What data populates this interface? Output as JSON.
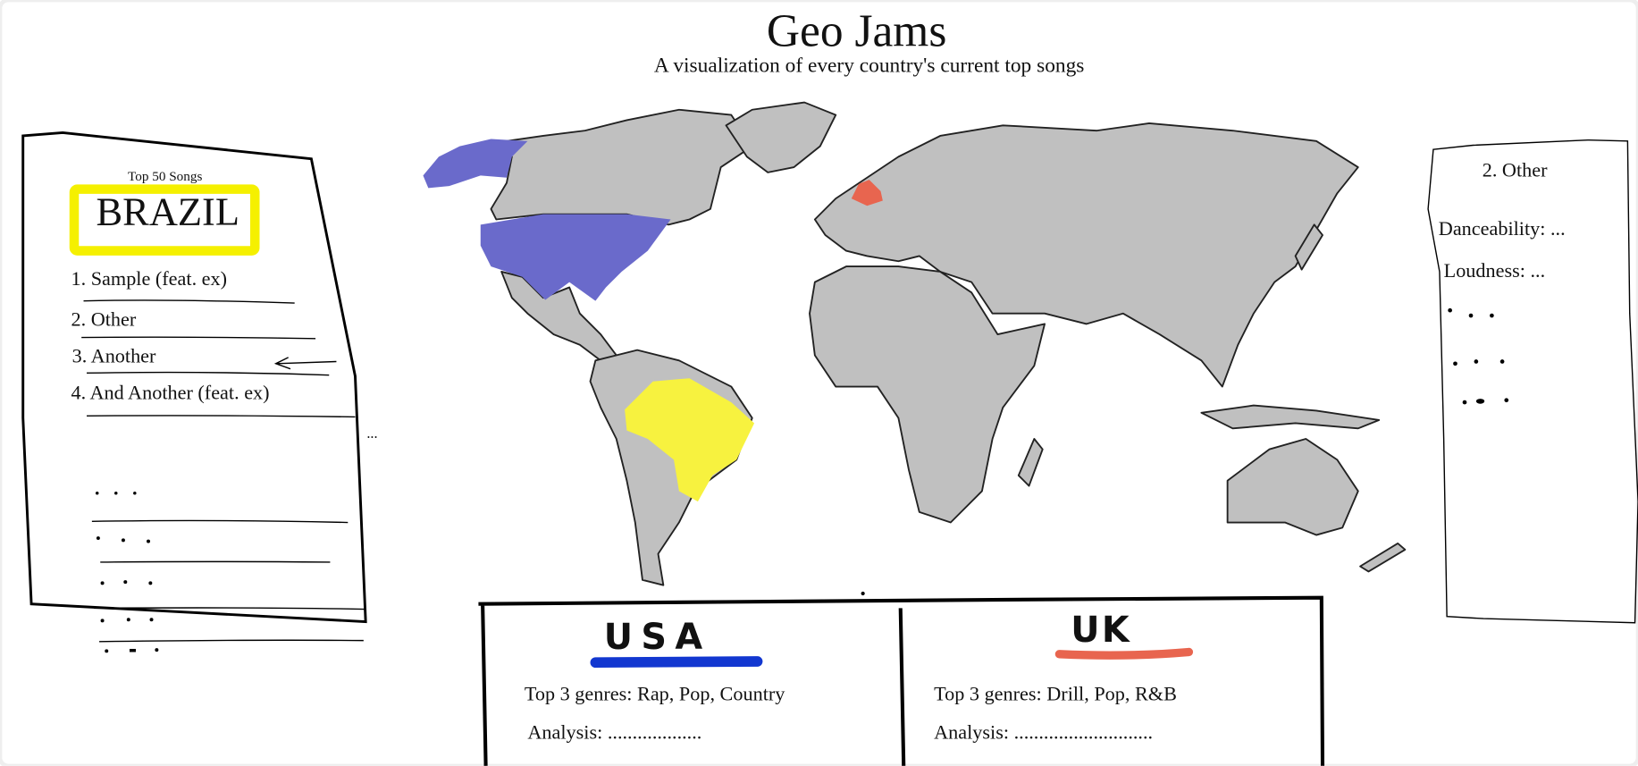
{
  "header": {
    "title": "Geo Jams",
    "subtitle": "A visualization of every country's current top songs"
  },
  "left_panel": {
    "caption": "Top 50 Songs",
    "country": "BRAZIL",
    "songs": [
      "1. Sample (feat. ex)",
      "2. Other",
      "3. Another",
      "4. And Another (feat. ex)"
    ],
    "more": "..."
  },
  "right_panel": {
    "song": "2. Other",
    "danceability": "Danceability: ...",
    "loudness": "Loudness: ..."
  },
  "compare": {
    "left": {
      "country": "USA",
      "genres": "Top 3 genres: Rap, Pop, Country",
      "analysis": "Analysis: ..................."
    },
    "right": {
      "country": "UK",
      "genres": "Top 3 genres: Drill, Pop, R&B",
      "analysis": "Analysis: ............................"
    }
  },
  "colors": {
    "land": "#c0c0c0",
    "usa": "#6a6acb",
    "usa_underline": "#1237d0",
    "brazil": "#f7f23f",
    "brazil_box": "#f5f000",
    "uk": "#e8654f"
  }
}
